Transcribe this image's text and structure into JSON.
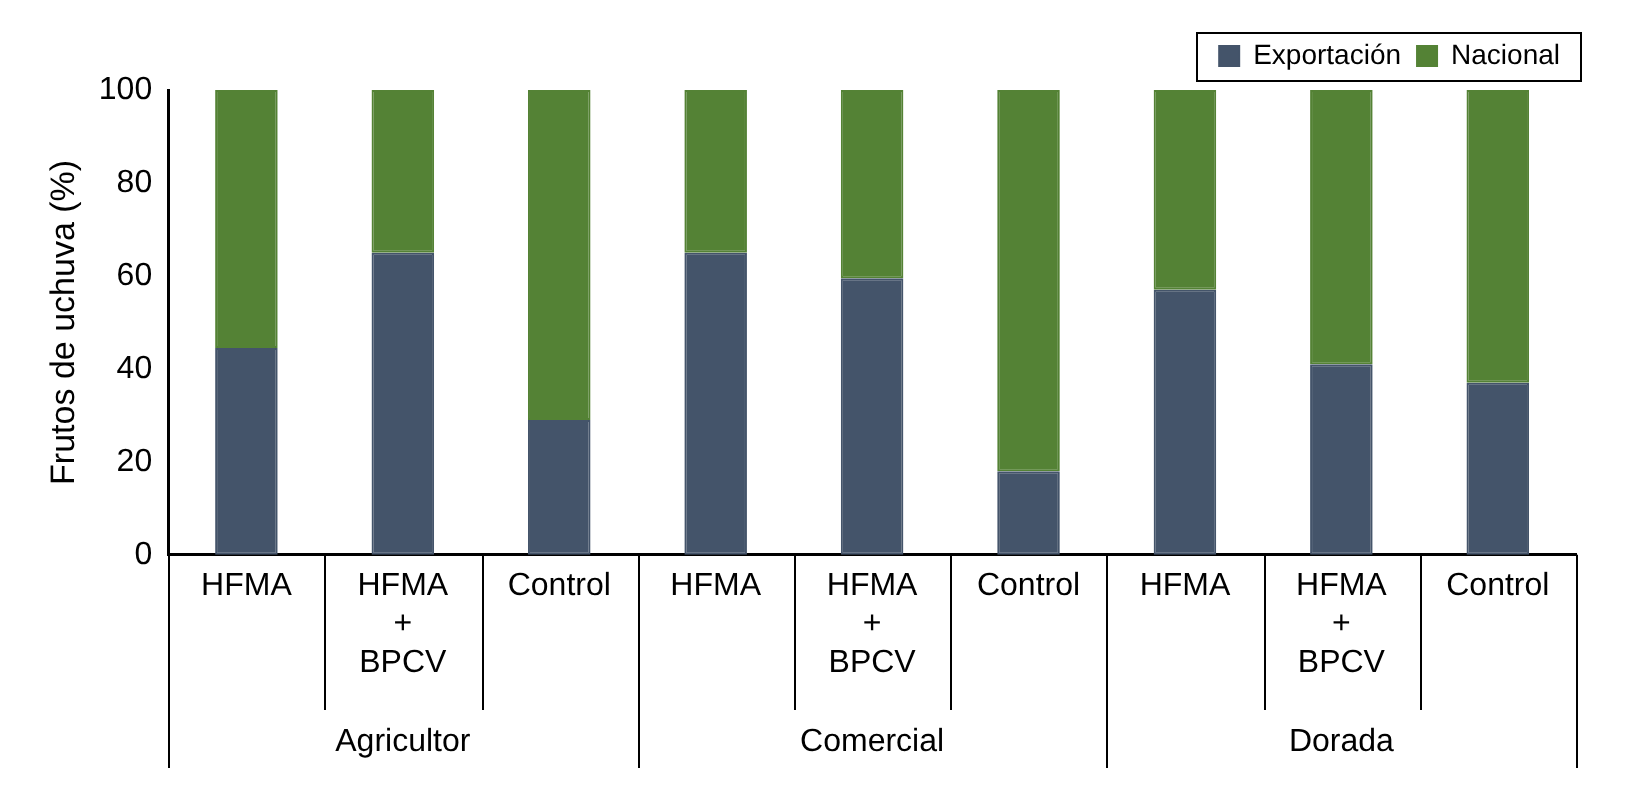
{
  "chart_data": {
    "type": "bar",
    "stacked": true,
    "ylabel": "Frutos de uchuva (%)",
    "categories": [
      "HFMA",
      "HFMA + BPCV",
      "Control",
      "HFMA",
      "HFMA + BPCV",
      "Control",
      "HFMA",
      "HFMA + BPCV",
      "Control"
    ],
    "series": [
      {
        "name": "Exportación",
        "color": "#44546a",
        "values": [
          44.5,
          65,
          29,
          65,
          59.5,
          18,
          57,
          41,
          37
        ]
      },
      {
        "name": "Nacional",
        "color": "#548235",
        "values": [
          55.5,
          35,
          71,
          35,
          40.5,
          82,
          43,
          59,
          63
        ]
      }
    ],
    "annotations": [
      "Agricultor",
      "Comercial",
      "Dorada"
    ],
    "ylim": [
      0,
      100
    ],
    "yticks": [
      0,
      20,
      40,
      60,
      80,
      100
    ],
    "grid": false,
    "legend": "top right"
  }
}
